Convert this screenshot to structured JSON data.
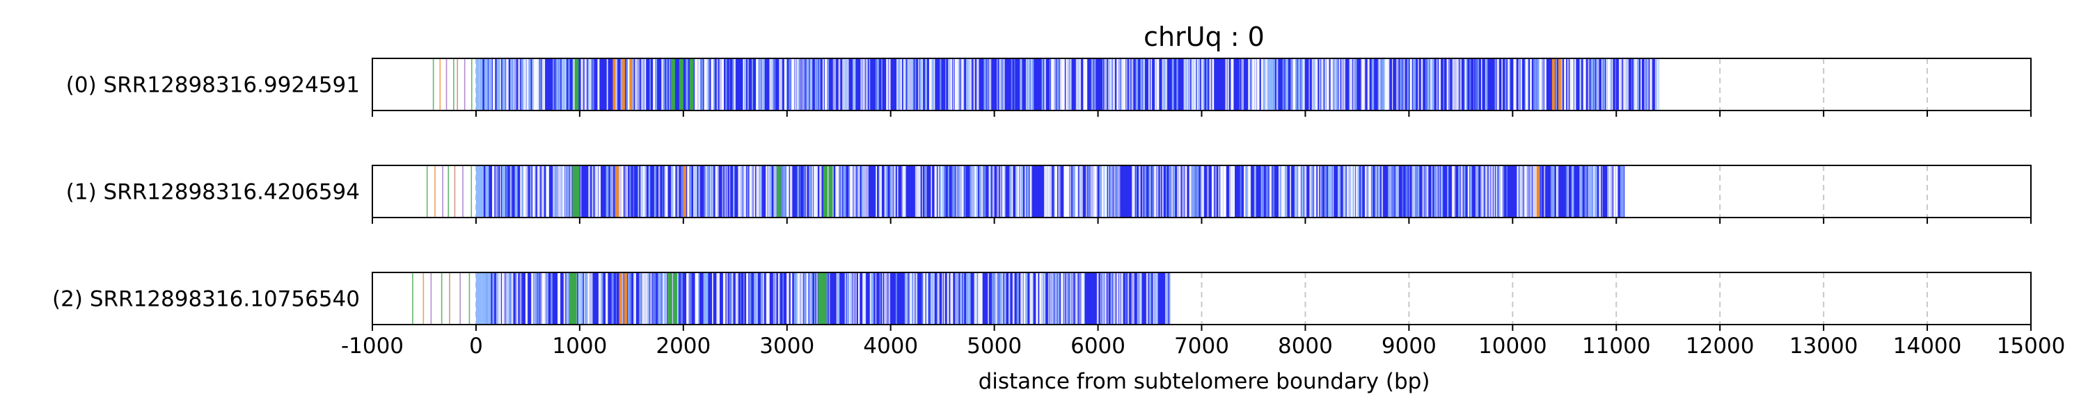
{
  "chart_data": {
    "type": "track",
    "title": "chrUq : 0",
    "xlabel": "distance from subtelomere boundary (bp)",
    "xlim": [
      -1000,
      15000
    ],
    "xticks": [
      -1000,
      0,
      1000,
      2000,
      3000,
      4000,
      5000,
      6000,
      7000,
      8000,
      9000,
      10000,
      11000,
      12000,
      13000,
      14000,
      15000
    ],
    "xtick_labels": [
      "-1000",
      "0",
      "1000",
      "2000",
      "3000",
      "4000",
      "5000",
      "6000",
      "7000",
      "8000",
      "9000",
      "10000",
      "11000",
      "12000",
      "13000",
      "14000",
      "15000"
    ],
    "grid": "vertical dashed",
    "colors": {
      "main": "#2a2ef0",
      "light": "#8fb8ff",
      "white": "#ffffff",
      "green": "#3aa84a",
      "orange": "#f08a2a",
      "purple": "#a070c0",
      "gridline": "#c8c8c8"
    },
    "reads": [
      {
        "label": "(0) SRR12898316.9924591",
        "start": 0,
        "end": 11400,
        "flank_start": -420,
        "seed": 11,
        "green_marks": [
          950,
          1880,
          1960,
          2060
        ],
        "orange_marks": [
          1320,
          1410,
          1480,
          10380,
          10440
        ],
        "light_marks": [
          30,
          80,
          120,
          200
        ]
      },
      {
        "label": "(1) SRR12898316.4206594",
        "start": 0,
        "end": 11080,
        "flank_start": -480,
        "seed": 23,
        "green_marks": [
          930,
          960,
          2900,
          3350,
          3400
        ],
        "orange_marks": [
          1350,
          2000,
          10230
        ],
        "light_marks": [
          40,
          90,
          250
        ]
      },
      {
        "label": "(2) SRR12898316.10756540",
        "start": 0,
        "end": 6700,
        "flank_start": -620,
        "seed": 37,
        "green_marks": [
          900,
          930,
          1850,
          1900,
          3300,
          3340
        ],
        "orange_marks": [
          1380,
          1430
        ],
        "light_marks": [
          20,
          60,
          110
        ]
      }
    ]
  }
}
